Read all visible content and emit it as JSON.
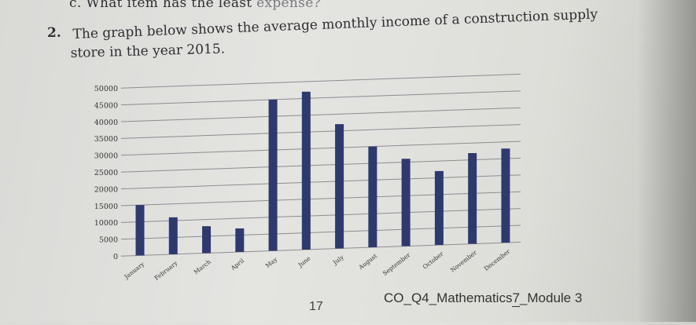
{
  "question": {
    "prev_item": "c. What item has the least",
    "prev_item_faded": " expense?",
    "number": "2.",
    "line1": "The graph below shows the average monthly income of a construction supply",
    "line2": "store in the year 2015."
  },
  "chart_data": {
    "type": "bar",
    "title": "",
    "xlabel": "",
    "ylabel": "",
    "ylim": [
      0,
      50000
    ],
    "yticks": [
      0,
      5000,
      10000,
      15000,
      20000,
      25000,
      30000,
      35000,
      40000,
      45000,
      50000
    ],
    "ytick_labels": [
      "0",
      "5000",
      "10000",
      "15000",
      "20000",
      "25000",
      "30000",
      "35000",
      "40000",
      "45000",
      "50000"
    ],
    "categories": [
      "January",
      "February",
      "March",
      "April",
      "May",
      "June",
      "July",
      "August",
      "September",
      "October",
      "November",
      "December"
    ],
    "values": [
      15000,
      11000,
      8000,
      7000,
      45000,
      47000,
      37000,
      30000,
      26000,
      22000,
      27000,
      28000
    ],
    "bar_color": "#2e3a6e",
    "grid": true
  },
  "footer": {
    "page_number": "17",
    "module_prefix": "CO_Q4_Mathematics ",
    "module_num": "7",
    "module_suffix": "_Module 3"
  }
}
